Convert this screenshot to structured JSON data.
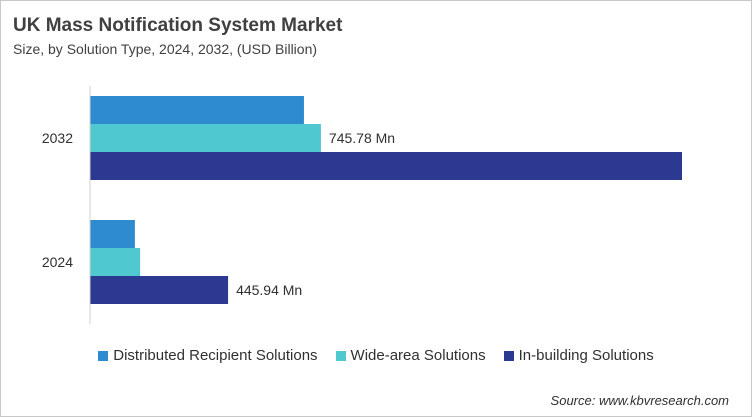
{
  "title": "UK Mass Notification System Market",
  "subtitle": "Size, by Solution Type, 2024, 2032, (USD Billion)",
  "source": "Source: www.kbvresearch.com",
  "chart_data": {
    "type": "bar",
    "orientation": "horizontal",
    "title": "UK Mass Notification System Market",
    "subtitle": "Size, by Solution Type, 2024, 2032, (USD Billion)",
    "categories": [
      "2032",
      "2024"
    ],
    "series": [
      {
        "name": "Distributed Recipient Solutions",
        "color": "#2e8bcf",
        "values": [
          691,
          145
        ]
      },
      {
        "name": "Wide-area Solutions",
        "color": "#4fc8cf",
        "values": [
          745.78,
          162
        ]
      },
      {
        "name": "In-building Solutions",
        "color": "#2b3990",
        "values": [
          1912,
          445.94
        ]
      }
    ],
    "data_labels": [
      {
        "category": "2032",
        "series": "Wide-area Solutions",
        "text": "745.78 Mn"
      },
      {
        "category": "2024",
        "series": "In-building Solutions",
        "text": "445.94 Mn"
      }
    ],
    "xlim": [
      0,
      1950
    ],
    "grid": false,
    "legend": "bottom"
  }
}
